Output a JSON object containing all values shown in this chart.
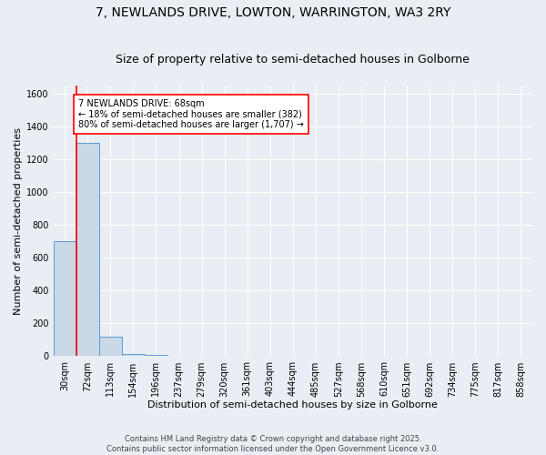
{
  "title": "7, NEWLANDS DRIVE, LOWTON, WARRINGTON, WA3 2RY",
  "subtitle": "Size of property relative to semi-detached houses in Golborne",
  "xlabel": "Distribution of semi-detached houses by size in Golborne",
  "ylabel": "Number of semi-detached properties",
  "categories": [
    "30sqm",
    "72sqm",
    "113sqm",
    "154sqm",
    "196sqm",
    "237sqm",
    "279sqm",
    "320sqm",
    "361sqm",
    "403sqm",
    "444sqm",
    "485sqm",
    "527sqm",
    "568sqm",
    "610sqm",
    "651sqm",
    "692sqm",
    "734sqm",
    "775sqm",
    "817sqm",
    "858sqm"
  ],
  "values": [
    700,
    1300,
    120,
    15,
    8,
    5,
    0,
    0,
    0,
    0,
    0,
    0,
    0,
    0,
    0,
    0,
    0,
    0,
    0,
    0,
    0
  ],
  "bar_color": "#c9d9e8",
  "bar_edge_color": "#5b9bd5",
  "red_line_index": 1,
  "annotation_text": "7 NEWLANDS DRIVE: 68sqm\n← 18% of semi-detached houses are smaller (382)\n80% of semi-detached houses are larger (1,707) →",
  "ylim": [
    0,
    1650
  ],
  "yticks": [
    0,
    200,
    400,
    600,
    800,
    1000,
    1200,
    1400,
    1600
  ],
  "footer": "Contains HM Land Registry data © Crown copyright and database right 2025.\nContains public sector information licensed under the Open Government Licence v3.0.",
  "background_color": "#e8eef4",
  "plot_bg_color": "#e8eef4",
  "grid_color": "#ffffff",
  "title_fontsize": 10,
  "subtitle_fontsize": 9,
  "axis_label_fontsize": 8,
  "tick_fontsize": 7,
  "annotation_fontsize": 7,
  "footer_fontsize": 6
}
